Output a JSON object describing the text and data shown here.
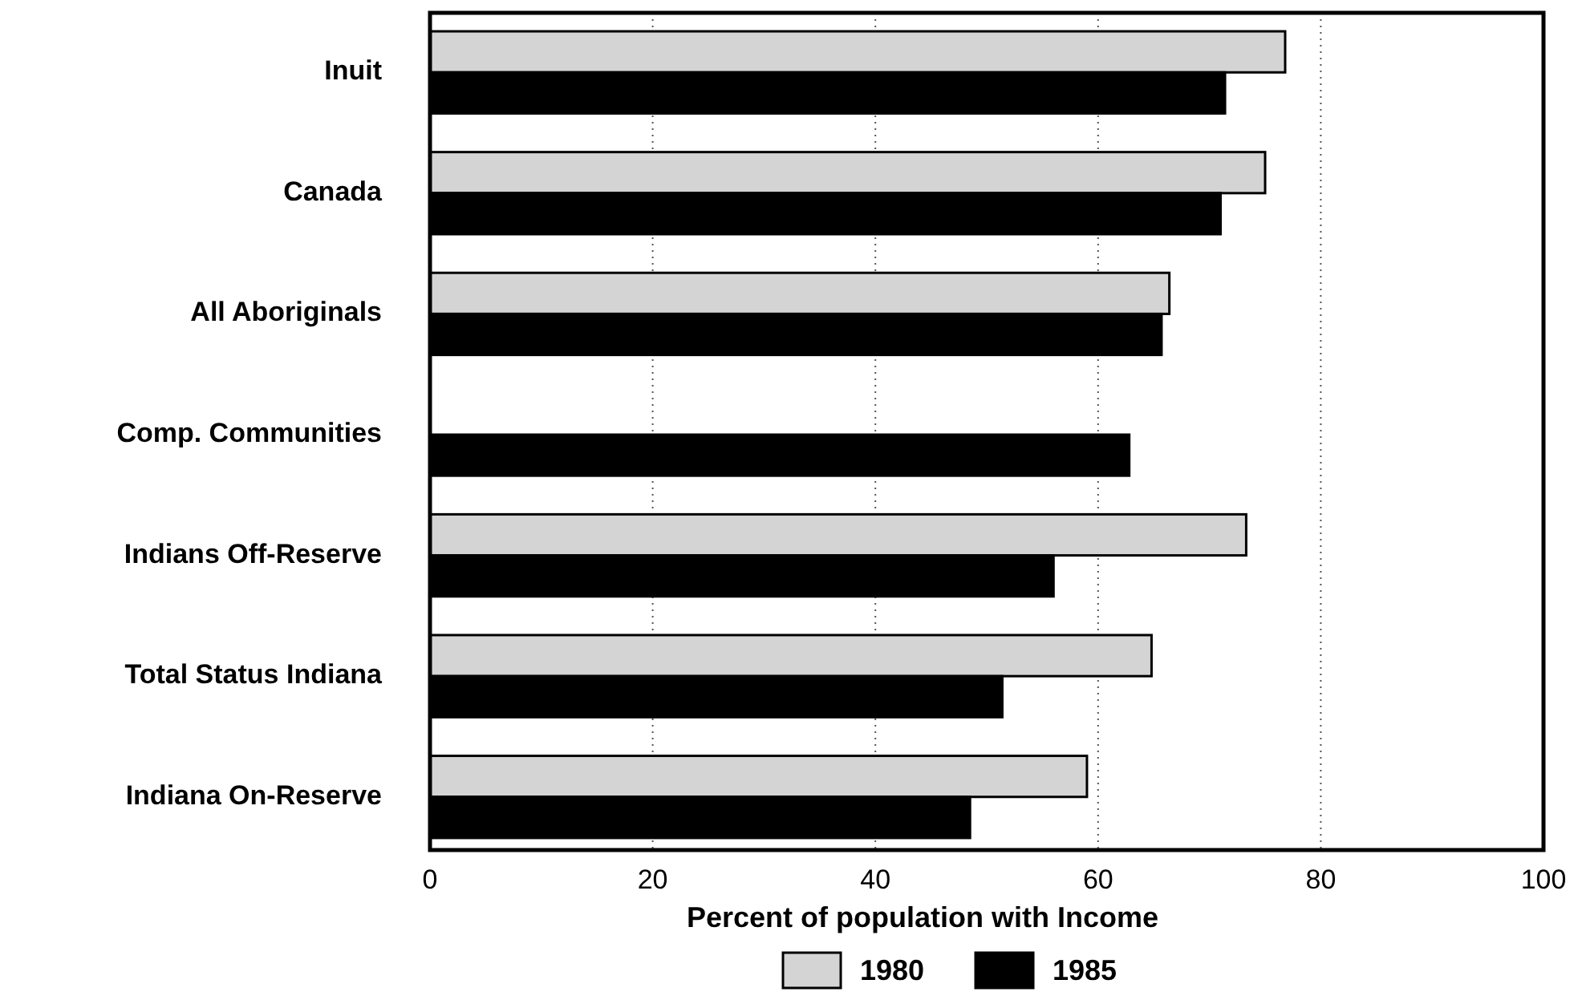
{
  "chart_data": {
    "type": "bar",
    "orientation": "horizontal",
    "xlabel": "Percent of population with Income",
    "categories": [
      "Inuit",
      "Canada",
      "All Aboriginals",
      "Comp. Communities",
      "Indians Off-Reserve",
      "Total Status Indiana",
      "Indiana On-Reserve"
    ],
    "series": [
      {
        "name": "1980",
        "color": "#d4d4d4",
        "values": [
          76.8,
          75.0,
          66.4,
          null,
          73.3,
          64.8,
          59.0
        ]
      },
      {
        "name": "1985",
        "color": "#000000",
        "values": [
          71.4,
          71.0,
          65.7,
          62.8,
          56.0,
          51.4,
          48.5
        ]
      }
    ],
    "xlim": [
      0,
      100
    ],
    "xticks": [
      0,
      20,
      40,
      60,
      80,
      100
    ],
    "grid": "x",
    "legend": "bottom"
  }
}
